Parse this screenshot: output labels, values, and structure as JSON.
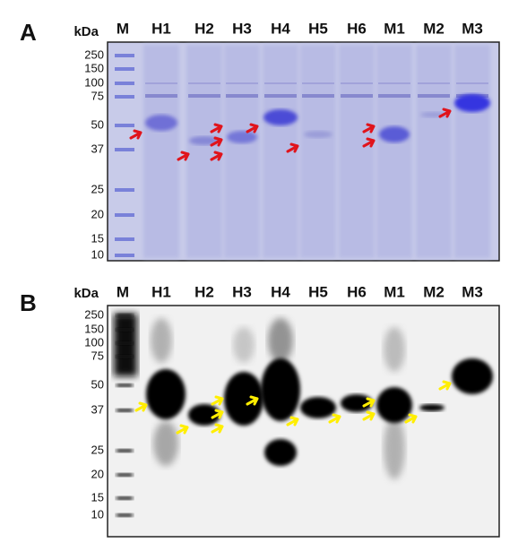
{
  "panels": [
    {
      "label": "A",
      "unit": "kDa",
      "lanes": [
        "M",
        "H1",
        "H2",
        "H3",
        "H4",
        "H5",
        "H6",
        "M1",
        "M2",
        "M3"
      ],
      "markers": [
        250,
        150,
        100,
        75,
        50,
        37,
        25,
        20,
        15,
        10
      ]
    },
    {
      "label": "B",
      "unit": "kDa",
      "lanes": [
        "M",
        "H1",
        "H2",
        "H3",
        "H4",
        "H5",
        "H6",
        "M1",
        "M2",
        "M3"
      ],
      "markers": [
        250,
        150,
        100,
        75,
        50,
        37,
        25,
        20,
        15,
        10
      ]
    }
  ]
}
